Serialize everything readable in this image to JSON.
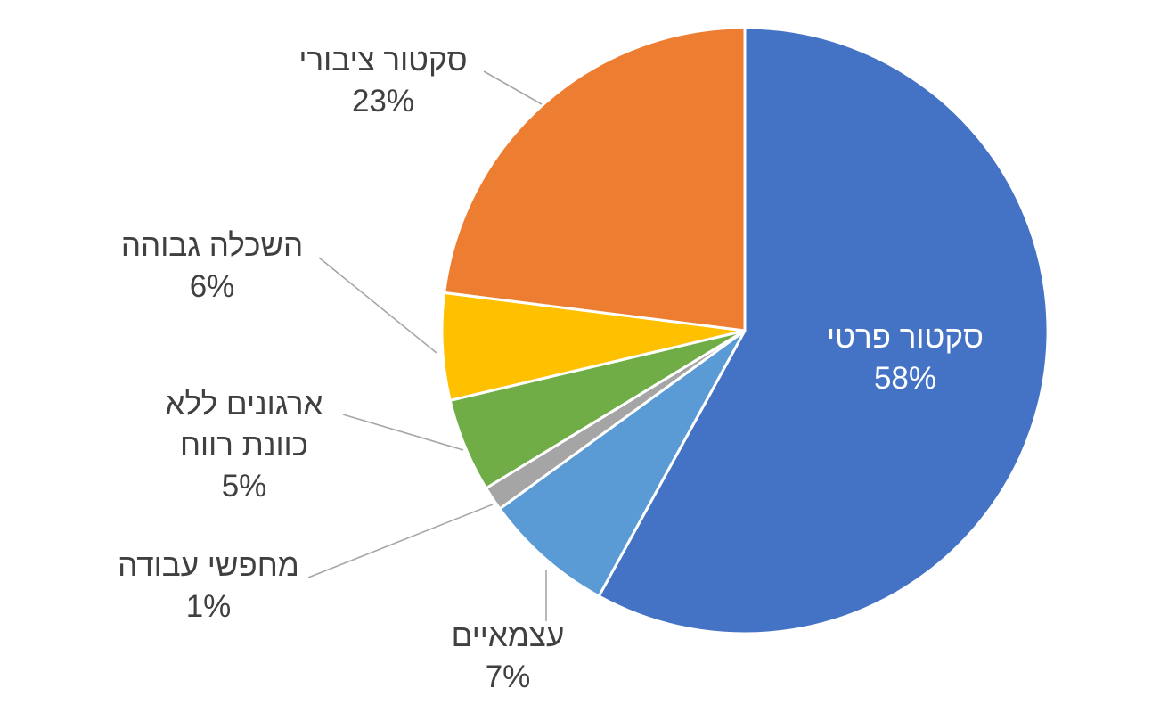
{
  "chart_data": {
    "type": "pie",
    "start_angle_deg": 0,
    "direction": "clockwise",
    "slices": [
      {
        "label": "סקטור פרטי",
        "label_lines": [
          "סקטור פרטי"
        ],
        "value": 58,
        "value_label": "58%",
        "color": "#4472C4",
        "label_position": "inside"
      },
      {
        "label": "עצמאיים",
        "label_lines": [
          "עצמאיים"
        ],
        "value": 7,
        "value_label": "7%",
        "color": "#5B9BD5",
        "label_position": "outside"
      },
      {
        "label": "מחפשי עבודה",
        "label_lines": [
          "מחפשי עבודה"
        ],
        "value": 1.3,
        "value_label": "1%",
        "color": "#A5A5A5",
        "label_position": "outside"
      },
      {
        "label": "ארגונים ללא כוונת רווח",
        "label_lines": [
          "ארגונים ללא",
          "כוונת רווח"
        ],
        "value": 5,
        "value_label": "5%",
        "color": "#70AD47",
        "label_position": "outside"
      },
      {
        "label": "השכלה גבוהה",
        "label_lines": [
          "השכלה גבוהה"
        ],
        "value": 5.7,
        "value_label": "6%",
        "color": "#FFC000",
        "label_position": "outside"
      },
      {
        "label": "סקטור ציבורי",
        "label_lines": [
          "סקטור ציבורי"
        ],
        "value": 23,
        "value_label": "23%",
        "color": "#ED7D31",
        "label_position": "outside"
      }
    ],
    "leader_line_color": "#A6A6A6",
    "label_text_color": "#404040",
    "legend": "none"
  }
}
